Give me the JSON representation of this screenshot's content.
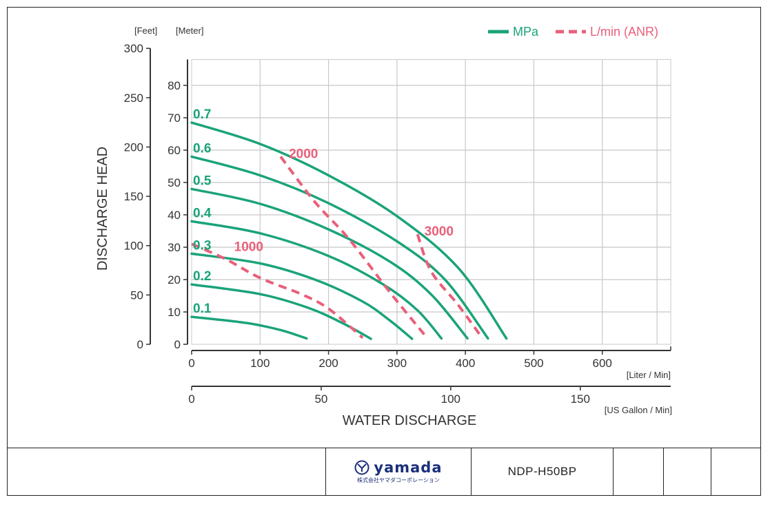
{
  "chart_data": {
    "type": "line",
    "y_primary_unit": "[Meter]",
    "y_secondary_unit": "[Feet]",
    "ylabel": "DISCHARGE HEAD",
    "xlabel": "WATER DISCHARGE",
    "x_primary_unit": "[Liter / Min]",
    "x_secondary_unit": "[US Gallon / Min]",
    "x_primary_ticks": [
      0,
      100,
      200,
      300,
      400,
      500,
      600
    ],
    "x_secondary_ticks": [
      0,
      50,
      100,
      150
    ],
    "y_meter_ticks": [
      0,
      10,
      20,
      30,
      40,
      50,
      60,
      70,
      80
    ],
    "y_feet_ticks": [
      0,
      50,
      100,
      150,
      200,
      250,
      300
    ],
    "xlim": [
      0,
      700
    ],
    "ylim": [
      0,
      88
    ],
    "grid": true,
    "legend": {
      "placement": "top-right",
      "items": [
        {
          "label": "MPa",
          "style": "solid",
          "color": "#1aa37a"
        },
        {
          "label": "L/min (ANR)",
          "style": "dashed",
          "color": "#e8607a"
        }
      ]
    },
    "pressure_series": [
      {
        "name": "0.1",
        "points": [
          [
            0,
            8.5
          ],
          [
            80,
            6.6
          ],
          [
            130,
            4.4
          ],
          [
            168,
            1.8
          ]
        ]
      },
      {
        "name": "0.2",
        "points": [
          [
            0,
            18.5
          ],
          [
            100,
            15.5
          ],
          [
            170,
            11.3
          ],
          [
            220,
            6.6
          ],
          [
            262,
            1.7
          ]
        ]
      },
      {
        "name": "0.3",
        "points": [
          [
            0,
            28
          ],
          [
            100,
            25
          ],
          [
            180,
            20
          ],
          [
            250,
            13.2
          ],
          [
            290,
            7.3
          ],
          [
            322,
            1.7
          ]
        ]
      },
      {
        "name": "0.4",
        "points": [
          [
            0,
            38
          ],
          [
            100,
            34.3
          ],
          [
            200,
            27.3
          ],
          [
            280,
            18.5
          ],
          [
            330,
            10.5
          ],
          [
            365,
            1.8
          ]
        ]
      },
      {
        "name": "0.5",
        "points": [
          [
            0,
            48
          ],
          [
            100,
            43.4
          ],
          [
            200,
            35.5
          ],
          [
            290,
            25.5
          ],
          [
            350,
            15.4
          ],
          [
            403,
            1.8
          ]
        ]
      },
      {
        "name": "0.6",
        "points": [
          [
            0,
            58
          ],
          [
            100,
            52.2
          ],
          [
            200,
            43.6
          ],
          [
            300,
            31.8
          ],
          [
            370,
            20
          ],
          [
            433,
            1.8
          ]
        ]
      },
      {
        "name": "0.7",
        "points": [
          [
            0,
            68.5
          ],
          [
            100,
            61.9
          ],
          [
            200,
            52.2
          ],
          [
            300,
            39.6
          ],
          [
            390,
            23.5
          ],
          [
            460,
            1.8
          ]
        ]
      }
    ],
    "air_series": [
      {
        "name": "1000",
        "points": [
          [
            0,
            31
          ],
          [
            50,
            26.3
          ],
          [
            100,
            20.5
          ],
          [
            160,
            15.5
          ],
          [
            200,
            11
          ],
          [
            250,
            2
          ]
        ]
      },
      {
        "name": "2000",
        "points": [
          [
            130,
            58
          ],
          [
            180,
            44
          ],
          [
            230,
            32.5
          ],
          [
            290,
            16
          ],
          [
            340,
            3
          ]
        ]
      },
      {
        "name": "3000",
        "points": [
          [
            330,
            34
          ],
          [
            350,
            22.5
          ],
          [
            390,
            12
          ],
          [
            425,
            1.8
          ]
        ]
      }
    ],
    "colors": {
      "pressure": "#1aa37a",
      "air": "#e8607a",
      "grid": "#c8c8c8",
      "axis": "#333333"
    }
  },
  "footer": {
    "logo_name": "yamada",
    "logo_subtitle": "株式会社ヤマダコーポレーション",
    "model": "NDP-H50BP"
  }
}
